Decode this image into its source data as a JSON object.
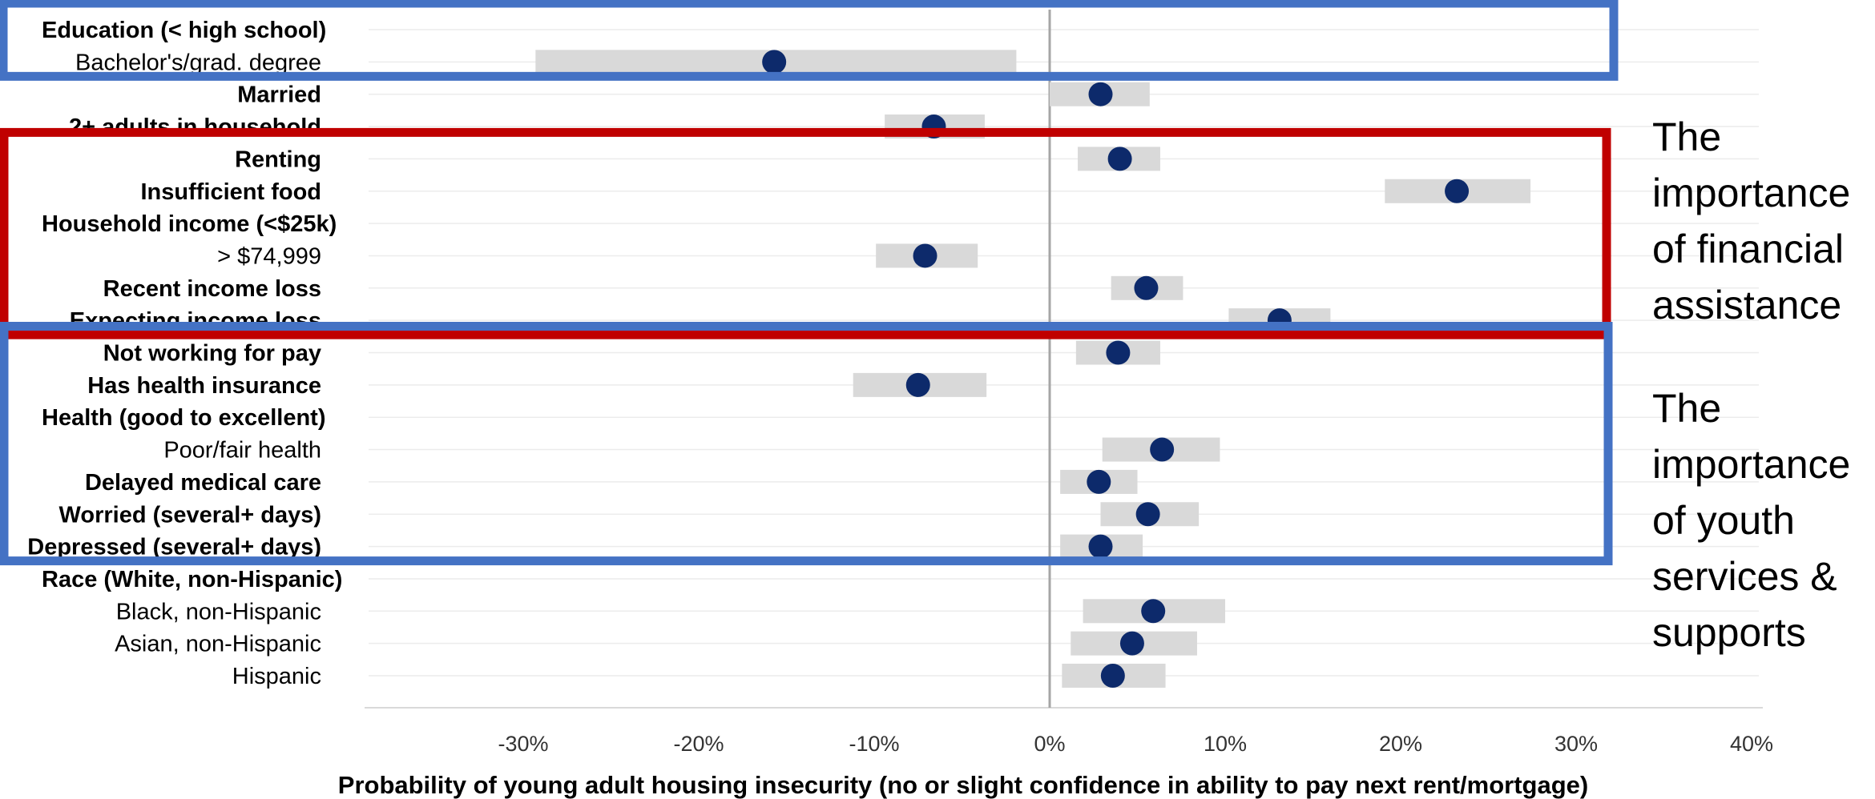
{
  "chart_data": {
    "type": "dot-interval",
    "xlabel": "Probability of young adult housing insecurity (no or slight confidence in ability to pay next rent/mortgage)",
    "xlim": [
      -0.4,
      0.4
    ],
    "xticks": [
      -0.3,
      -0.2,
      -0.1,
      0,
      0.1,
      0.2,
      0.3,
      0.4
    ],
    "xtick_labels": [
      "-30%",
      "-20%",
      "-10%",
      "0%",
      "10%",
      "20%",
      "30%",
      "40%"
    ],
    "point_color": "#0d2a6b",
    "interval_color": "#d9d9d9",
    "grid": true,
    "rows": [
      {
        "label": "Education (< high school)",
        "bold": true,
        "estimate": null,
        "low": null,
        "high": null
      },
      {
        "label": "Bachelor's/grad. degree",
        "bold": false,
        "estimate": -0.157,
        "low": -0.293,
        "high": -0.019
      },
      {
        "label": "Married",
        "bold": true,
        "estimate": 0.029,
        "low": 0.0,
        "high": 0.057
      },
      {
        "label": "2+ adults in household",
        "bold": true,
        "estimate": -0.066,
        "low": -0.094,
        "high": -0.037
      },
      {
        "label": "Renting",
        "bold": true,
        "estimate": 0.04,
        "low": 0.016,
        "high": 0.063
      },
      {
        "label": "Insufficient food",
        "bold": true,
        "estimate": 0.232,
        "low": 0.191,
        "high": 0.274
      },
      {
        "label": "Household income (<$25k)",
        "bold": true,
        "estimate": null,
        "low": null,
        "high": null
      },
      {
        "label": "> $74,999",
        "bold": false,
        "estimate": -0.071,
        "low": -0.099,
        "high": -0.041
      },
      {
        "label": "Recent income loss",
        "bold": true,
        "estimate": 0.055,
        "low": 0.035,
        "high": 0.076
      },
      {
        "label": "Expecting income loss",
        "bold": true,
        "estimate": 0.131,
        "low": 0.102,
        "high": 0.16
      },
      {
        "label": "Not working for pay",
        "bold": true,
        "estimate": 0.039,
        "low": 0.015,
        "high": 0.063
      },
      {
        "label": "Has health insurance",
        "bold": true,
        "estimate": -0.075,
        "low": -0.112,
        "high": -0.036
      },
      {
        "label": "Health (good to excellent)",
        "bold": true,
        "estimate": null,
        "low": null,
        "high": null
      },
      {
        "label": "Poor/fair health",
        "bold": false,
        "estimate": 0.064,
        "low": 0.03,
        "high": 0.097
      },
      {
        "label": "Delayed medical care",
        "bold": true,
        "estimate": 0.028,
        "low": 0.006,
        "high": 0.05
      },
      {
        "label": "Worried (several+ days)",
        "bold": true,
        "estimate": 0.056,
        "low": 0.029,
        "high": 0.085
      },
      {
        "label": "Depressed (several+ days)",
        "bold": true,
        "estimate": 0.029,
        "low": 0.006,
        "high": 0.053
      },
      {
        "label": "Race (White, non-Hispanic)",
        "bold": true,
        "estimate": null,
        "low": null,
        "high": null
      },
      {
        "label": "Black, non-Hispanic",
        "bold": false,
        "estimate": 0.059,
        "low": 0.019,
        "high": 0.1
      },
      {
        "label": "Asian, non-Hispanic",
        "bold": false,
        "estimate": 0.047,
        "low": 0.012,
        "high": 0.084
      },
      {
        "label": "Hispanic",
        "bold": false,
        "estimate": 0.036,
        "low": 0.007,
        "high": 0.066
      }
    ]
  },
  "highlights": [
    {
      "name": "education-highlight-box",
      "color": "#4472c4",
      "first_row": 0,
      "last_row": 1
    },
    {
      "name": "financial-highlight-box",
      "color": "#c00000",
      "first_row": 4,
      "last_row": 9,
      "annotation": [
        "The",
        "importance",
        "of financial",
        "assistance"
      ]
    },
    {
      "name": "youth-highlight-box",
      "color": "#4472c4",
      "first_row": 10,
      "last_row": 16,
      "annotation": [
        "The",
        "importance",
        "of youth",
        "services &",
        "supports"
      ]
    }
  ]
}
